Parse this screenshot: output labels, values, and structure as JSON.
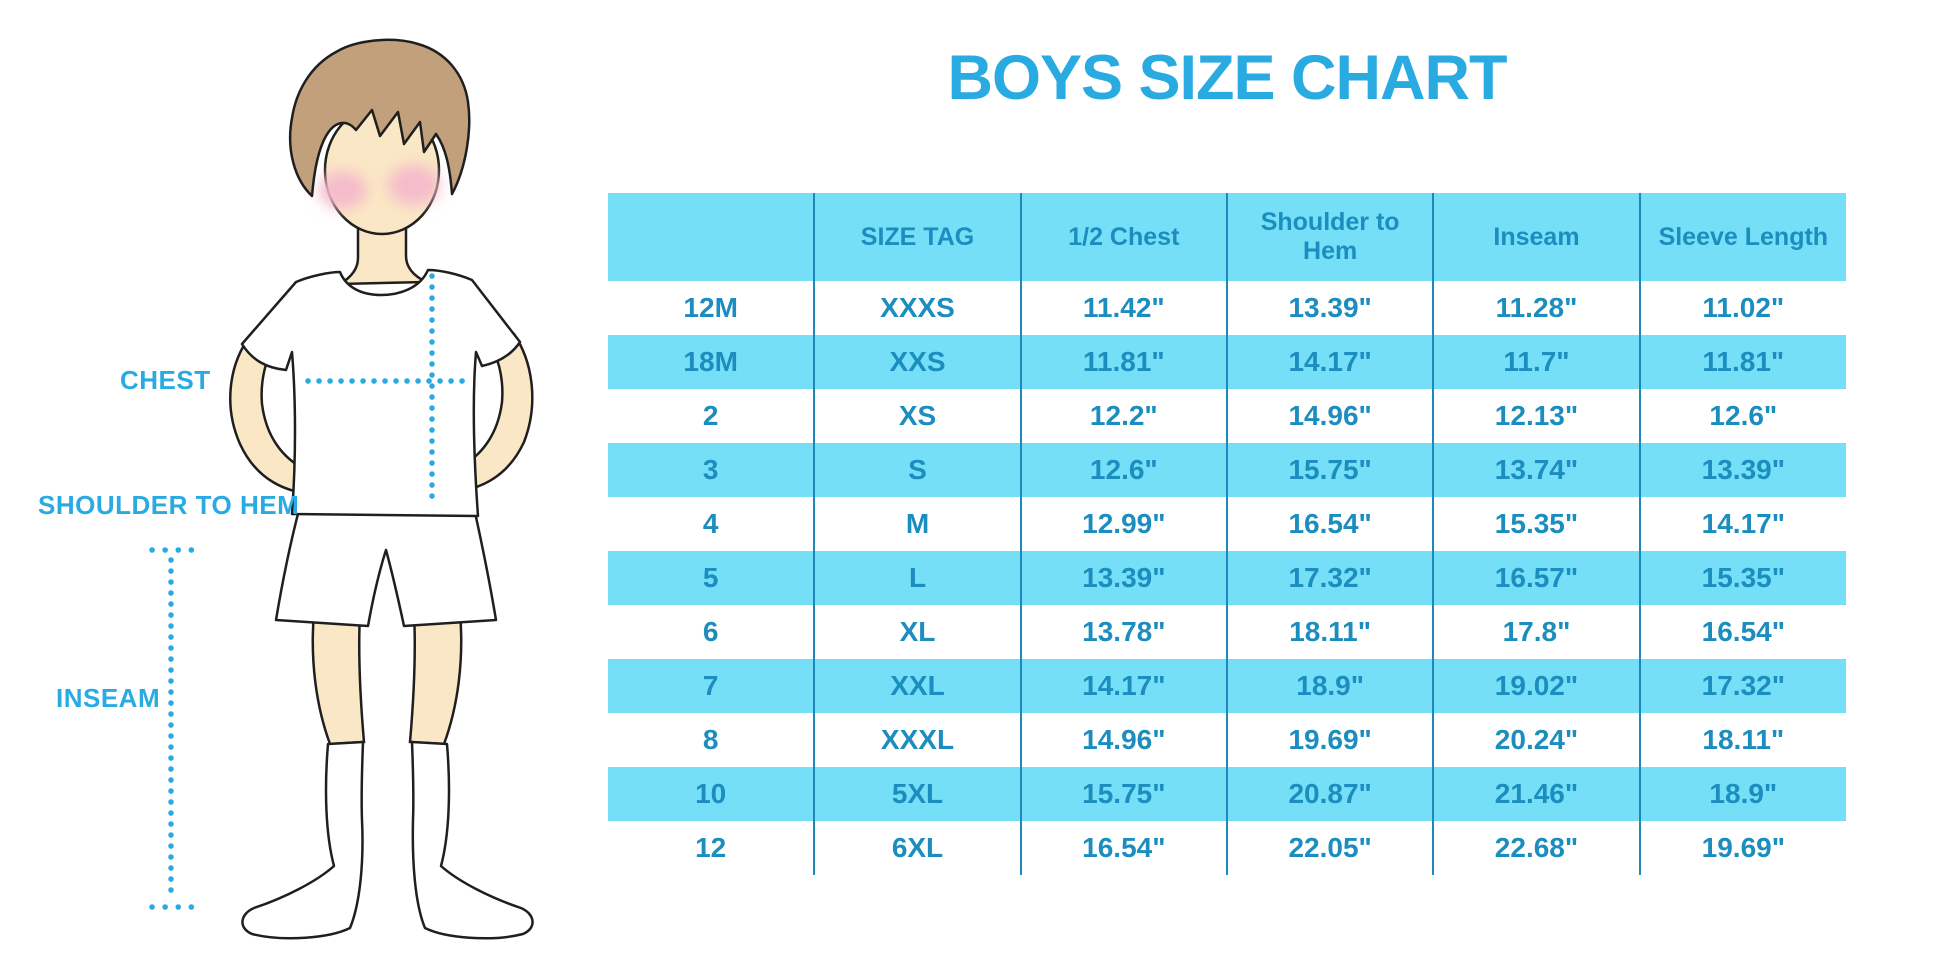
{
  "title": "BOYS SIZE CHART",
  "figure": {
    "labels": {
      "chest": "CHEST",
      "shoulder_to_hem": "SHOULDER TO HEM",
      "inseam": "INSEAM"
    }
  },
  "colors": {
    "accent": "#29ABE2",
    "stripe": "#75DFF8",
    "text": "#1B8DBE",
    "divider": "#1C89BA",
    "skin": "#FAE7C5",
    "hair": "#C2A07B",
    "blush": "#F5BCCB",
    "outline": "#1F1F1F"
  },
  "chart_data": {
    "type": "table",
    "title": "BOYS SIZE CHART",
    "units": "inches",
    "stripe_pattern": "header and alternating rows light cyan, others white",
    "columns": [
      "",
      "SIZE TAG",
      "1/2 Chest",
      "Shoulder to Hem",
      "Inseam",
      "Sleeve Length"
    ],
    "rows": [
      [
        "12M",
        "XXXS",
        "11.42\"",
        "13.39\"",
        "11.28\"",
        "11.02\""
      ],
      [
        "18M",
        "XXS",
        "11.81\"",
        "14.17\"",
        "11.7\"",
        "11.81\""
      ],
      [
        "2",
        "XS",
        "12.2\"",
        "14.96\"",
        "12.13\"",
        "12.6\""
      ],
      [
        "3",
        "S",
        "12.6\"",
        "15.75\"",
        "13.74\"",
        "13.39\""
      ],
      [
        "4",
        "M",
        "12.99\"",
        "16.54\"",
        "15.35\"",
        "14.17\""
      ],
      [
        "5",
        "L",
        "13.39\"",
        "17.32\"",
        "16.57\"",
        "15.35\""
      ],
      [
        "6",
        "XL",
        "13.78\"",
        "18.11\"",
        "17.8\"",
        "16.54\""
      ],
      [
        "7",
        "XXL",
        "14.17\"",
        "18.9\"",
        "19.02\"",
        "17.32\""
      ],
      [
        "8",
        "XXXL",
        "14.96\"",
        "19.69\"",
        "20.24\"",
        "18.11\""
      ],
      [
        "10",
        "5XL",
        "15.75\"",
        "20.87\"",
        "21.46\"",
        "18.9\""
      ],
      [
        "12",
        "6XL",
        "16.54\"",
        "22.05\"",
        "22.68\"",
        "19.69\""
      ]
    ]
  }
}
